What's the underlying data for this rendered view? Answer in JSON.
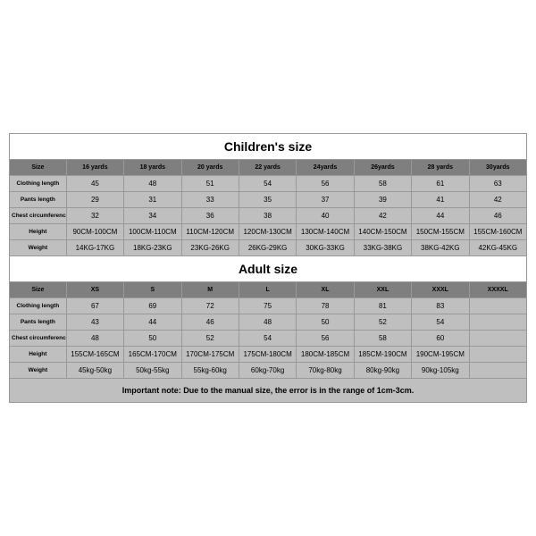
{
  "children": {
    "title": "Children's size",
    "sizeLabel": "Size",
    "headers": [
      "16 yards",
      "18 yards",
      "20 yards",
      "22 yards",
      "24yards",
      "26yards",
      "28 yards",
      "30yards"
    ],
    "rows": [
      {
        "label": "Clothing length",
        "values": [
          "45",
          "48",
          "51",
          "54",
          "56",
          "58",
          "61",
          "63"
        ]
      },
      {
        "label": "Pants length",
        "values": [
          "29",
          "31",
          "33",
          "35",
          "37",
          "39",
          "41",
          "42"
        ]
      },
      {
        "label": "Chest circumference 1/2",
        "values": [
          "32",
          "34",
          "36",
          "38",
          "40",
          "42",
          "44",
          "46"
        ]
      },
      {
        "label": "Height",
        "values": [
          "90CM-100CM",
          "100CM-110CM",
          "110CM-120CM",
          "120CM-130CM",
          "130CM-140CM",
          "140CM-150CM",
          "150CM-155CM",
          "155CM-160CM"
        ]
      },
      {
        "label": "Weight",
        "values": [
          "14KG-17KG",
          "18KG-23KG",
          "23KG-26KG",
          "26KG-29KG",
          "30KG-33KG",
          "33KG-38KG",
          "38KG-42KG",
          "42KG-45KG"
        ]
      }
    ]
  },
  "adult": {
    "title": "Adult size",
    "sizeLabel": "Size",
    "headers": [
      "XS",
      "S",
      "M",
      "L",
      "XL",
      "XXL",
      "XXXL",
      "XXXXL"
    ],
    "rows": [
      {
        "label": "Clothing length",
        "values": [
          "67",
          "69",
          "72",
          "75",
          "78",
          "81",
          "83",
          ""
        ]
      },
      {
        "label": "Pants length",
        "values": [
          "43",
          "44",
          "46",
          "48",
          "50",
          "52",
          "54",
          ""
        ]
      },
      {
        "label": "Chest circumference 1/2",
        "values": [
          "48",
          "50",
          "52",
          "54",
          "56",
          "58",
          "60",
          ""
        ]
      },
      {
        "label": "Height",
        "values": [
          "155CM-165CM",
          "165CM-170CM",
          "170CM-175CM",
          "175CM-180CM",
          "180CM-185CM",
          "185CM-190CM",
          "190CM-195CM",
          ""
        ]
      },
      {
        "label": "Weight",
        "values": [
          "45kg-50kg",
          "50kg-55kg",
          "55kg-60kg",
          "60kg-70kg",
          "70kg-80kg",
          "80kg-90kg",
          "90kg-105kg",
          ""
        ]
      }
    ]
  },
  "note": "Important note: Due to the manual size, the error is in the range of 1cm-3cm."
}
